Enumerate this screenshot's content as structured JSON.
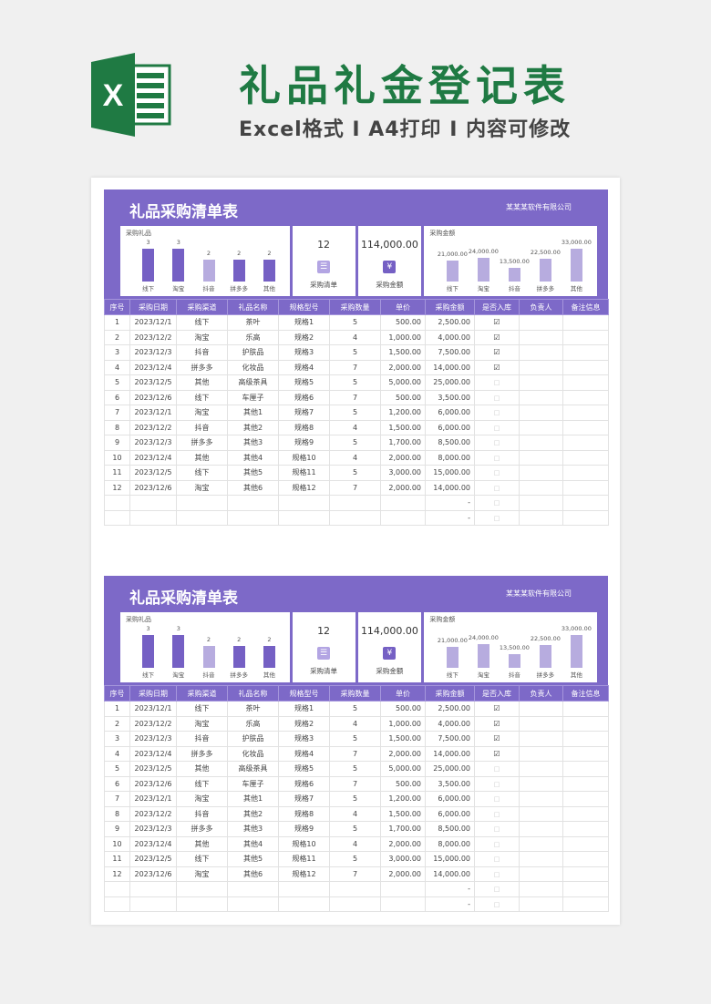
{
  "banner": {
    "title": "礼品礼金登记表",
    "subtitle": "Excel格式 I A4打印 I 内容可修改",
    "logo_letter": "X"
  },
  "colors": {
    "accent": "#7d69c8",
    "bar_dark": "#7560c4",
    "bar_light": "#b7acdf",
    "brand_green": "#1f7a43"
  },
  "sheet": {
    "title": "礼品采购清单表",
    "company": "某某某软件有限公司",
    "gift_chart": {
      "label": "采购礼品",
      "type": "bar",
      "categories": [
        "线下",
        "淘宝",
        "抖音",
        "拼多多",
        "其他"
      ],
      "values": [
        3,
        3,
        2,
        2,
        2
      ],
      "value_labels": [
        "3",
        "3",
        "2",
        "2",
        "2"
      ]
    },
    "count_card": {
      "value": "12",
      "caption": "采购清单",
      "icon": "list-icon"
    },
    "amount_card": {
      "value": "114,000.00",
      "caption": "采购金额",
      "icon": "yen-edit-icon"
    },
    "amount_chart": {
      "label": "采购金额",
      "type": "bar",
      "categories": [
        "线下",
        "淘宝",
        "抖音",
        "拼多多",
        "其他"
      ],
      "values": [
        21000,
        24000,
        13500,
        22500,
        33000
      ],
      "value_labels": [
        "21,000.00",
        "24,000.00",
        "13,500.00",
        "22,500.00",
        "33,000.00"
      ]
    },
    "columns": [
      "序号",
      "采购日期",
      "采购渠道",
      "礼品名称",
      "规格型号",
      "采购数量",
      "单价",
      "采购金额",
      "是否入库",
      "负责人",
      "备注信息"
    ],
    "rows": [
      [
        "1",
        "2023/12/1",
        "线下",
        "茶叶",
        "规格1",
        "5",
        "500.00",
        "2,500.00",
        true,
        "",
        ""
      ],
      [
        "2",
        "2023/12/2",
        "淘宝",
        "乐高",
        "规格2",
        "4",
        "1,000.00",
        "4,000.00",
        true,
        "",
        ""
      ],
      [
        "3",
        "2023/12/3",
        "抖音",
        "护肤品",
        "规格3",
        "5",
        "1,500.00",
        "7,500.00",
        true,
        "",
        ""
      ],
      [
        "4",
        "2023/12/4",
        "拼多多",
        "化妆品",
        "规格4",
        "7",
        "2,000.00",
        "14,000.00",
        true,
        "",
        ""
      ],
      [
        "5",
        "2023/12/5",
        "其他",
        "高级茶具",
        "规格5",
        "5",
        "5,000.00",
        "25,000.00",
        false,
        "",
        ""
      ],
      [
        "6",
        "2023/12/6",
        "线下",
        "车厘子",
        "规格6",
        "7",
        "500.00",
        "3,500.00",
        false,
        "",
        ""
      ],
      [
        "7",
        "2023/12/1",
        "淘宝",
        "其他1",
        "规格7",
        "5",
        "1,200.00",
        "6,000.00",
        false,
        "",
        ""
      ],
      [
        "8",
        "2023/12/2",
        "抖音",
        "其他2",
        "规格8",
        "4",
        "1,500.00",
        "6,000.00",
        false,
        "",
        ""
      ],
      [
        "9",
        "2023/12/3",
        "拼多多",
        "其他3",
        "规格9",
        "5",
        "1,700.00",
        "8,500.00",
        false,
        "",
        ""
      ],
      [
        "10",
        "2023/12/4",
        "其他",
        "其他4",
        "规格10",
        "4",
        "2,000.00",
        "8,000.00",
        false,
        "",
        ""
      ],
      [
        "11",
        "2023/12/5",
        "线下",
        "其他5",
        "规格11",
        "5",
        "3,000.00",
        "15,000.00",
        false,
        "",
        ""
      ],
      [
        "12",
        "2023/12/6",
        "淘宝",
        "其他6",
        "规格12",
        "7",
        "2,000.00",
        "14,000.00",
        false,
        "",
        ""
      ],
      [
        "",
        "",
        "",
        "",
        "",
        "",
        "",
        "-",
        false,
        "",
        ""
      ],
      [
        "",
        "",
        "",
        "",
        "",
        "",
        "",
        "-",
        false,
        "",
        ""
      ]
    ]
  }
}
